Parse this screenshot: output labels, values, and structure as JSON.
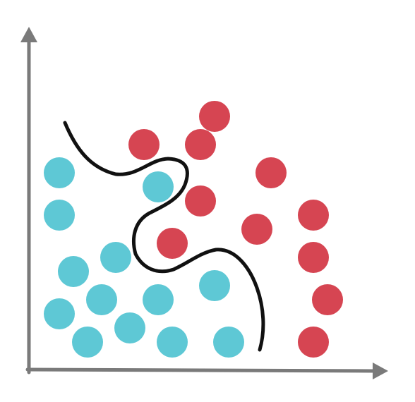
{
  "colors": {
    "axis": "#7a7a7a",
    "class_a": "#5ec8d5",
    "class_b": "#d64552",
    "boundary": "#111111",
    "background": "#ffffff"
  },
  "axes": {
    "x_arrow_icon": "arrow-right-icon",
    "y_arrow_icon": "arrow-up-icon"
  },
  "classes": [
    {
      "name": "",
      "color_key": "class_a"
    },
    {
      "name": "",
      "color_key": "class_b"
    }
  ]
}
